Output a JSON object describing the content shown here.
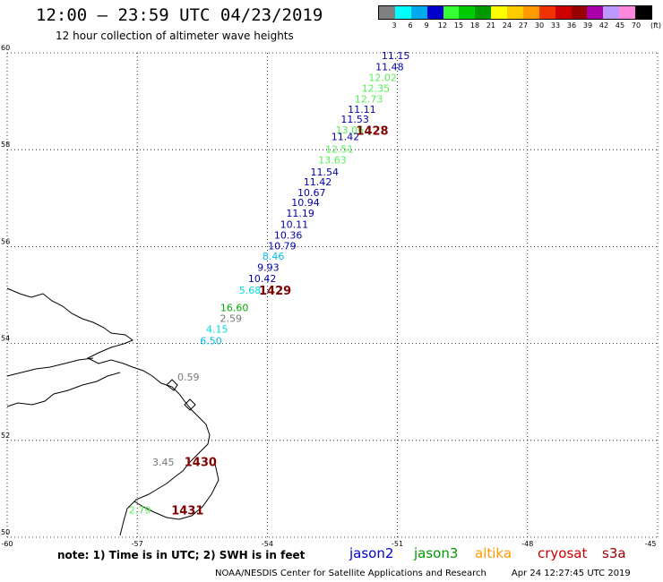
{
  "header": {
    "title": "12:00 – 23:59 UTC 04/23/2019",
    "subtitle": "12 hour collection of altimeter wave heights"
  },
  "legend": {
    "unit": "(ft)",
    "colors": [
      "#808080",
      "#00ffff",
      "#00aaee",
      "#0000cc",
      "#33ff33",
      "#00cc00",
      "#009900",
      "#ffff00",
      "#ffcc00",
      "#ff9900",
      "#ee3300",
      "#cc0000",
      "#990000",
      "#aa00aa",
      "#bb99ff",
      "#ff88dd",
      "#000000"
    ],
    "labels": [
      "3",
      "6",
      "9",
      "12",
      "15",
      "18",
      "21",
      "24",
      "27",
      "30",
      "33",
      "36",
      "39",
      "42",
      "45",
      "70"
    ]
  },
  "map": {
    "lon_ticks": [
      "-60",
      "-57",
      "-54",
      "-51",
      "-48",
      "-45"
    ],
    "lat_ticks": [
      "60",
      "58",
      "56",
      "54",
      "52",
      "50"
    ],
    "observations": [
      {
        "text": "11.15",
        "color": "#0000aa",
        "lon": -51.04,
        "lat": 59.94
      },
      {
        "text": "11.48",
        "color": "#0000aa",
        "lon": -51.18,
        "lat": 59.71
      },
      {
        "text": "12.02",
        "color": "#55ee55",
        "lon": -51.34,
        "lat": 59.49
      },
      {
        "text": "12.35",
        "color": "#55ee55",
        "lon": -51.5,
        "lat": 59.27
      },
      {
        "text": "12.73",
        "color": "#55ee55",
        "lon": -51.66,
        "lat": 59.05
      },
      {
        "text": "11.11",
        "color": "#0000aa",
        "lon": -51.82,
        "lat": 58.84
      },
      {
        "text": "11.53",
        "color": "#0000aa",
        "lon": -51.98,
        "lat": 58.63
      },
      {
        "text": "13.06",
        "color": "#55ee55",
        "lon": -52.1,
        "lat": 58.41
      },
      {
        "text": "11.42",
        "color": "#0000aa",
        "lon": -52.2,
        "lat": 58.27
      },
      {
        "text": "12.51",
        "color": "#55ee55",
        "lon": -52.34,
        "lat": 58.01
      },
      {
        "text": "13.63",
        "color": "#55ee55",
        "lon": -52.5,
        "lat": 57.79
      },
      {
        "text": "11.54",
        "color": "#0000aa",
        "lon": -52.68,
        "lat": 57.54
      },
      {
        "text": "11.42",
        "color": "#0000aa",
        "lon": -52.84,
        "lat": 57.34
      },
      {
        "text": "10.67",
        "color": "#0000aa",
        "lon": -52.98,
        "lat": 57.12
      },
      {
        "text": "10.94",
        "color": "#0000aa",
        "lon": -53.12,
        "lat": 56.91
      },
      {
        "text": "11.19",
        "color": "#0000aa",
        "lon": -53.24,
        "lat": 56.69
      },
      {
        "text": "10.11",
        "color": "#0000aa",
        "lon": -53.38,
        "lat": 56.46
      },
      {
        "text": "10.36",
        "color": "#0000aa",
        "lon": -53.52,
        "lat": 56.24
      },
      {
        "text": "10.79",
        "color": "#0000aa",
        "lon": -53.66,
        "lat": 56.02
      },
      {
        "text": "8.46",
        "color": "#00bbee",
        "lon": -53.86,
        "lat": 55.8
      },
      {
        "text": "9.93",
        "color": "#0000aa",
        "lon": -53.98,
        "lat": 55.57
      },
      {
        "text": "10.42",
        "color": "#0000aa",
        "lon": -54.12,
        "lat": 55.34
      },
      {
        "text": "5.68",
        "color": "#00dddd",
        "lon": -54.4,
        "lat": 55.1
      },
      {
        "text": "16.60",
        "color": "#00aa00",
        "lon": -54.76,
        "lat": 54.74
      },
      {
        "text": "2.59",
        "color": "#777777",
        "lon": -54.84,
        "lat": 54.52
      },
      {
        "text": "4.15",
        "color": "#00dddd",
        "lon": -55.16,
        "lat": 54.3
      },
      {
        "text": "6.50",
        "color": "#00bbee",
        "lon": -55.3,
        "lat": 54.06
      },
      {
        "text": "0.59",
        "color": "#777777",
        "lon": -55.82,
        "lat": 53.31
      },
      {
        "text": "3.45",
        "color": "#777777",
        "lon": -56.4,
        "lat": 51.55
      },
      {
        "text": "2.79",
        "color": "#55ee55",
        "lon": -56.94,
        "lat": 50.56
      }
    ],
    "times": [
      {
        "text": "1428",
        "color": "#800000",
        "lon": -51.58,
        "lat": 58.4
      },
      {
        "text": "1429",
        "color": "#800000",
        "lon": -53.82,
        "lat": 55.1
      },
      {
        "text": "1430",
        "color": "#800000",
        "lon": -55.54,
        "lat": 51.56
      },
      {
        "text": "1431",
        "color": "#800000",
        "lon": -55.84,
        "lat": 50.56
      }
    ]
  },
  "notes": {
    "note": "note:  1) Time is in UTC;  2) SWH is in feet",
    "satellites": [
      {
        "name": "jason2",
        "color": "#0000cc"
      },
      {
        "name": "jason3",
        "color": "#009900"
      },
      {
        "name": "altika",
        "color": "#ff9900"
      },
      {
        "name": "cryosat",
        "color": "#cc0000"
      },
      {
        "name": "s3a",
        "color": "#990000"
      }
    ]
  },
  "footer": {
    "credit": "NOAA/NESDIS Center for Satellite Applications and Research",
    "timestamp": "Apr 24 12:27:45 UTC 2019"
  }
}
